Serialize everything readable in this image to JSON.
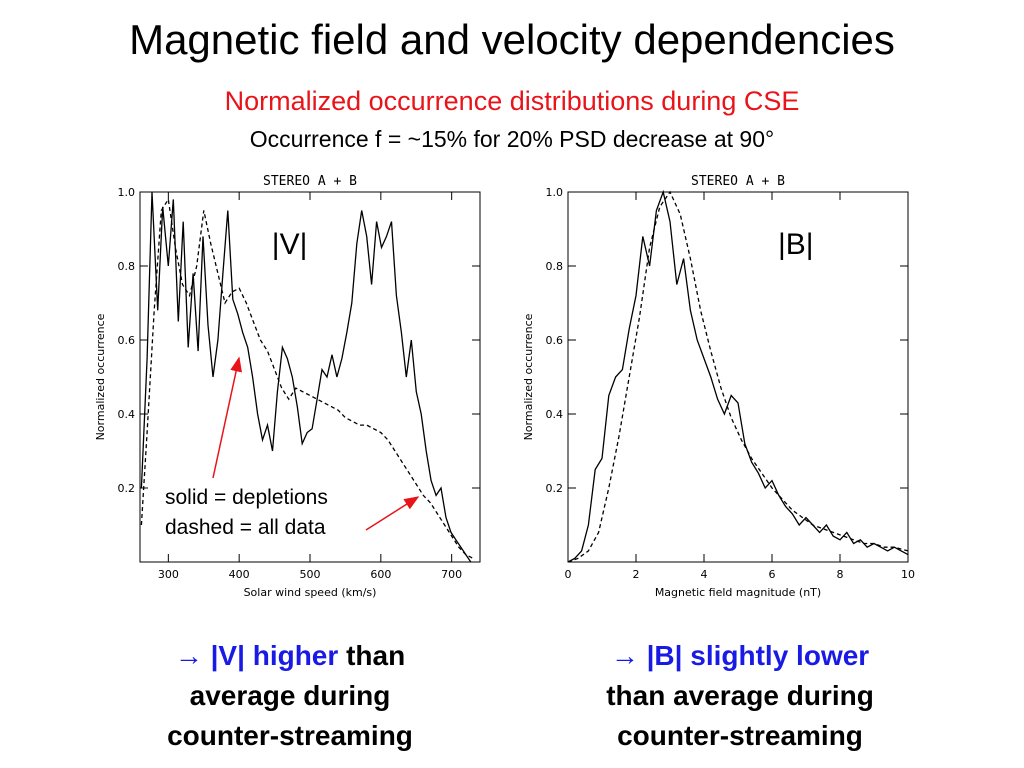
{
  "slide": {
    "title": "Magnetic field and velocity dependencies",
    "subtitle": "Normalized occurrence distributions during CSE",
    "subtitle2": "Occurrence f = ~15% for 20% PSD decrease at 90°"
  },
  "annotations": {
    "solid_label": "solid = depletions",
    "dashed_label": "dashed = all data"
  },
  "captions": {
    "v": {
      "arrow": "→",
      "highlight": "|V| higher",
      "rest_1": "than",
      "rest_2": "average during",
      "rest_3": "counter-streaming"
    },
    "b": {
      "arrow": "→",
      "highlight": "|B| slightly lower",
      "rest_2": "than average during",
      "rest_3": "counter-streaming"
    }
  },
  "colors": {
    "accent_red": "#e8141a",
    "highlight_blue": "#1a1ae6"
  },
  "chart_data": [
    {
      "type": "line",
      "title": "STEREO A + B",
      "panel_label": "|V|",
      "xlabel": "Solar wind speed (km/s)",
      "ylabel": "Normalized occurrence",
      "xlim": [
        260,
        740
      ],
      "ylim": [
        0,
        1.0
      ],
      "xticks": [
        300,
        400,
        500,
        600,
        700
      ],
      "yticks": [
        0.2,
        0.4,
        0.6,
        0.8,
        1.0
      ],
      "series": [
        {
          "name": "depletions",
          "style": "solid",
          "x": [
            262,
            270,
            277,
            285,
            292,
            300,
            307,
            314,
            321,
            328,
            335,
            342,
            349,
            356,
            363,
            370,
            377,
            384,
            391,
            398,
            405,
            412,
            419,
            426,
            433,
            440,
            447,
            454,
            461,
            468,
            475,
            482,
            489,
            496,
            503,
            510,
            517,
            524,
            531,
            538,
            545,
            552,
            559,
            566,
            573,
            580,
            587,
            594,
            601,
            608,
            615,
            622,
            629,
            636,
            643,
            650,
            657,
            664,
            671,
            678,
            685,
            692,
            699,
            706,
            713,
            720,
            727
          ],
          "y": [
            0.2,
            0.55,
            1.0,
            0.68,
            0.96,
            0.8,
            0.98,
            0.65,
            0.92,
            0.58,
            0.78,
            0.57,
            0.88,
            0.64,
            0.5,
            0.6,
            0.78,
            0.95,
            0.71,
            0.67,
            0.62,
            0.58,
            0.5,
            0.4,
            0.33,
            0.37,
            0.3,
            0.46,
            0.58,
            0.55,
            0.5,
            0.42,
            0.32,
            0.35,
            0.36,
            0.44,
            0.52,
            0.5,
            0.56,
            0.5,
            0.55,
            0.62,
            0.7,
            0.86,
            0.95,
            0.88,
            0.75,
            0.92,
            0.85,
            0.88,
            0.92,
            0.72,
            0.62,
            0.5,
            0.6,
            0.46,
            0.4,
            0.3,
            0.22,
            0.18,
            0.2,
            0.12,
            0.08,
            0.06,
            0.04,
            0.02,
            0.0
          ]
        },
        {
          "name": "all data",
          "style": "dashed",
          "x": [
            262,
            270,
            280,
            290,
            300,
            310,
            320,
            330,
            340,
            350,
            360,
            370,
            380,
            390,
            400,
            410,
            420,
            430,
            440,
            450,
            460,
            470,
            480,
            490,
            500,
            510,
            520,
            530,
            540,
            550,
            560,
            570,
            580,
            590,
            600,
            610,
            620,
            630,
            640,
            650,
            660,
            670,
            680,
            690,
            700,
            710,
            720,
            730
          ],
          "y": [
            0.1,
            0.35,
            0.68,
            0.95,
            0.98,
            0.85,
            0.75,
            0.72,
            0.8,
            0.95,
            0.86,
            0.78,
            0.7,
            0.73,
            0.74,
            0.7,
            0.65,
            0.6,
            0.57,
            0.52,
            0.47,
            0.44,
            0.47,
            0.46,
            0.45,
            0.44,
            0.43,
            0.42,
            0.41,
            0.39,
            0.38,
            0.37,
            0.37,
            0.36,
            0.35,
            0.33,
            0.3,
            0.27,
            0.24,
            0.21,
            0.18,
            0.16,
            0.13,
            0.1,
            0.07,
            0.04,
            0.02,
            0.01
          ]
        }
      ]
    },
    {
      "type": "line",
      "title": "STEREO A + B",
      "panel_label": "|B|",
      "xlabel": "Magnetic field magnitude (nT)",
      "ylabel": "Normalized occurrence",
      "xlim": [
        0,
        10
      ],
      "ylim": [
        0,
        1.0
      ],
      "xticks": [
        0,
        2,
        4,
        6,
        8,
        10
      ],
      "yticks": [
        0.2,
        0.4,
        0.6,
        0.8,
        1.0
      ],
      "series": [
        {
          "name": "depletions",
          "style": "solid",
          "x": [
            0,
            0.2,
            0.4,
            0.6,
            0.8,
            1.0,
            1.2,
            1.4,
            1.6,
            1.8,
            2.0,
            2.2,
            2.4,
            2.6,
            2.8,
            3.0,
            3.2,
            3.4,
            3.6,
            3.8,
            4.0,
            4.2,
            4.4,
            4.6,
            4.8,
            5.0,
            5.2,
            5.4,
            5.6,
            5.8,
            6.0,
            6.2,
            6.4,
            6.6,
            6.8,
            7.0,
            7.2,
            7.4,
            7.6,
            7.8,
            8.0,
            8.2,
            8.4,
            8.6,
            8.8,
            9.0,
            9.2,
            9.4,
            9.6,
            9.8,
            10.0
          ],
          "y": [
            0.0,
            0.01,
            0.03,
            0.1,
            0.25,
            0.28,
            0.45,
            0.5,
            0.52,
            0.63,
            0.72,
            0.88,
            0.8,
            0.95,
            1.0,
            0.92,
            0.75,
            0.82,
            0.68,
            0.6,
            0.55,
            0.5,
            0.44,
            0.4,
            0.45,
            0.43,
            0.32,
            0.27,
            0.24,
            0.2,
            0.22,
            0.18,
            0.15,
            0.13,
            0.1,
            0.12,
            0.1,
            0.08,
            0.1,
            0.07,
            0.06,
            0.08,
            0.05,
            0.06,
            0.04,
            0.05,
            0.04,
            0.03,
            0.04,
            0.03,
            0.02
          ]
        },
        {
          "name": "all data",
          "style": "dashed",
          "x": [
            0,
            0.3,
            0.6,
            0.9,
            1.2,
            1.5,
            1.8,
            2.1,
            2.4,
            2.7,
            3.0,
            3.3,
            3.6,
            3.9,
            4.2,
            4.5,
            4.8,
            5.1,
            5.4,
            5.7,
            6.0,
            6.3,
            6.6,
            6.9,
            7.2,
            7.5,
            7.8,
            8.1,
            8.4,
            8.7,
            9.0,
            9.3,
            9.6,
            10.0
          ],
          "y": [
            0.0,
            0.01,
            0.03,
            0.08,
            0.2,
            0.34,
            0.5,
            0.66,
            0.85,
            0.96,
            1.0,
            0.94,
            0.82,
            0.68,
            0.57,
            0.47,
            0.39,
            0.33,
            0.28,
            0.24,
            0.2,
            0.17,
            0.14,
            0.12,
            0.1,
            0.09,
            0.08,
            0.07,
            0.06,
            0.05,
            0.05,
            0.04,
            0.04,
            0.03
          ]
        }
      ]
    }
  ]
}
